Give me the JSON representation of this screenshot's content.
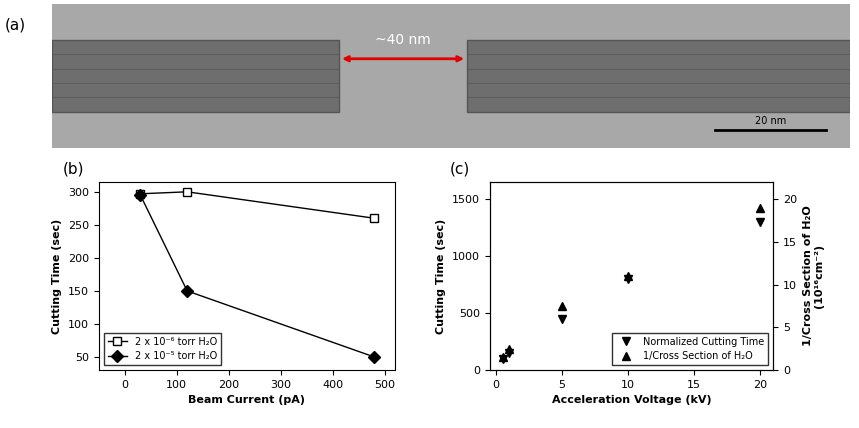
{
  "panel_labels": [
    "(a)",
    "(b)",
    "(c)"
  ],
  "image": {
    "gap_label": "~40 nm",
    "scale_bar": "20 nm"
  },
  "chart_data": [
    {
      "type": "line",
      "x_label": "Beam Current (pA)",
      "y_label": "Cutting Time (sec)",
      "xlim": [
        -50,
        520
      ],
      "xticks": [
        0,
        100,
        200,
        300,
        400,
        500
      ],
      "ylim": [
        30,
        315
      ],
      "yticks": [
        50,
        100,
        150,
        200,
        250,
        300
      ],
      "legend": "lower left",
      "series": [
        {
          "name": "2 x 10⁻⁶ torr H₂O",
          "color": "#000000",
          "marker": "open_square",
          "line_style": "solid",
          "x": [
            30,
            120,
            480
          ],
          "values": [
            297,
            300,
            260
          ]
        },
        {
          "name": "2 x 10⁻⁵ torr H₂O",
          "color": "#000000",
          "marker": "diamond",
          "line_style": "solid",
          "x": [
            30,
            120,
            480
          ],
          "values": [
            295,
            150,
            50
          ]
        }
      ]
    },
    {
      "type": "scatter",
      "x_label": "Acceleration Voltage (kV)",
      "y_label": "Cutting Time (sec)",
      "y2_label": "1/Cross Section of H₂O\n(10¹⁶cm⁻²)",
      "xlim": [
        -0.5,
        21
      ],
      "xticks": [
        0,
        5,
        10,
        15,
        20
      ],
      "ylim": [
        0,
        1650
      ],
      "yticks": [
        0,
        500,
        1000,
        1500
      ],
      "y2lim": [
        0,
        22
      ],
      "y2ticks": [
        0,
        5,
        10,
        15,
        20
      ],
      "legend": "lower right",
      "series": [
        {
          "name": "Normalized Cutting Time",
          "color": "#000000",
          "marker": "triangle_down",
          "x": [
            0.5,
            1,
            5,
            10,
            20
          ],
          "values": [
            100,
            150,
            450,
            800,
            1300
          ]
        },
        {
          "name": "1/Cross Section of H₂O",
          "color": "#000000",
          "marker": "triangle_up",
          "axis": "y2",
          "x": [
            0.5,
            1,
            5,
            10,
            20
          ],
          "values": [
            1.5,
            2.5,
            7.5,
            11,
            19
          ]
        }
      ]
    }
  ]
}
